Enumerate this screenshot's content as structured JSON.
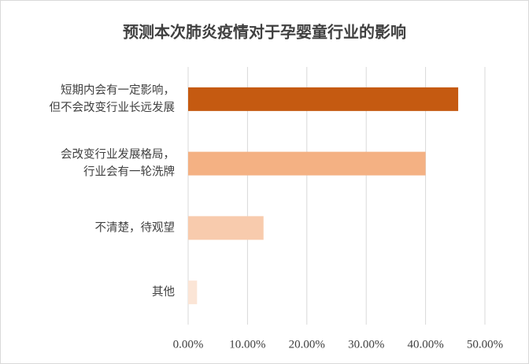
{
  "chart_data": {
    "type": "barh",
    "title": "预测本次肺炎疫情对于孕婴童行业的影响",
    "categories": [
      [
        "短期内会有一定影响，",
        "但不会改变行业长远发展"
      ],
      [
        "会改变行业发展格局，",
        "行业会有一轮洗牌"
      ],
      [
        "不清楚，待观望"
      ],
      [
        "其他"
      ]
    ],
    "values": [
      45.5,
      40.0,
      12.7,
      1.5
    ],
    "colors": [
      "#c55a11",
      "#f4b183",
      "#f8cbad",
      "#fbe5d6"
    ],
    "xlim": [
      0,
      50
    ],
    "xticks": [
      {
        "value": 0,
        "label": "0.00%"
      },
      {
        "value": 10,
        "label": "10.00%"
      },
      {
        "value": 20,
        "label": "20.00%"
      },
      {
        "value": 30,
        "label": "30.00%"
      },
      {
        "value": 40,
        "label": "40.00%"
      },
      {
        "value": 50,
        "label": "50.00%"
      }
    ],
    "grid": true
  }
}
